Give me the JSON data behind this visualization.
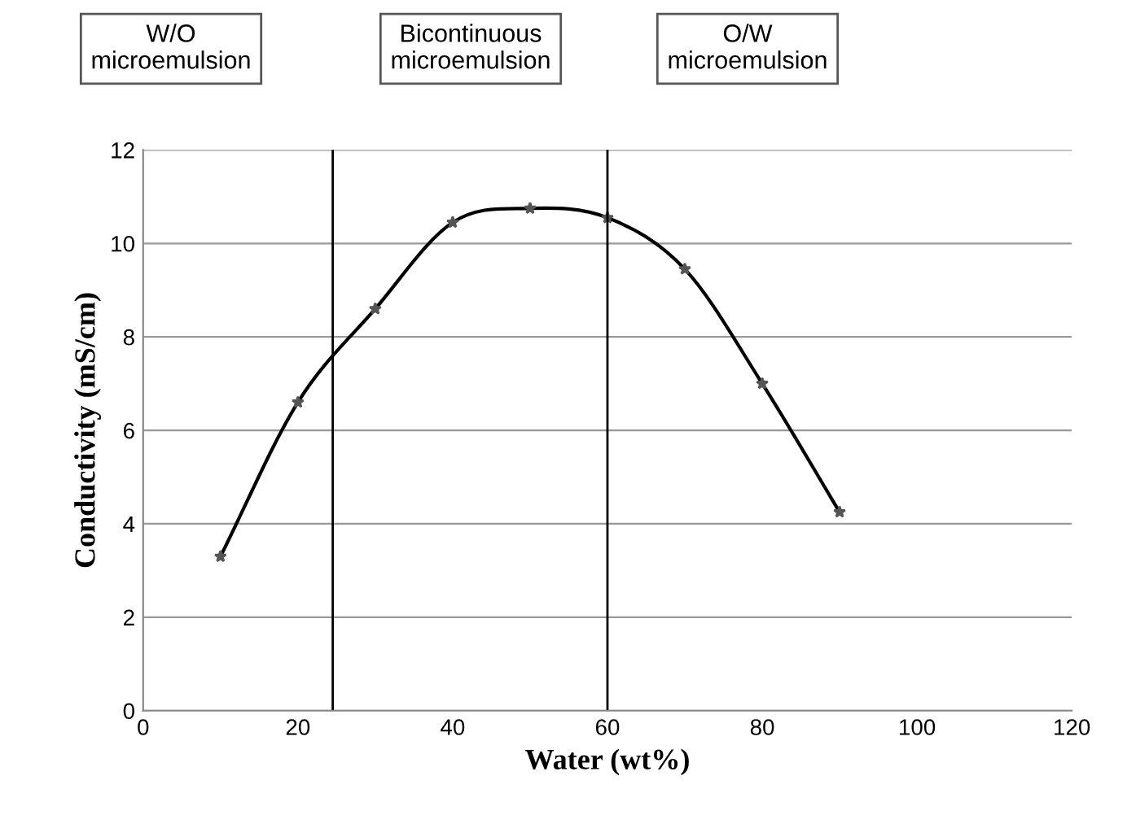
{
  "chart_data": {
    "type": "line",
    "xlabel": "Water (wt%)",
    "ylabel": "Conductivity (mS/cm)",
    "x": [
      10,
      20,
      30,
      40,
      50,
      60,
      70,
      80,
      90
    ],
    "series": [
      {
        "color": "#000000",
        "values": [
          3.3,
          6.6,
          8.6,
          10.45,
          10.75,
          10.55,
          9.45,
          7.0,
          4.25
        ]
      }
    ],
    "xlim": [
      0,
      120
    ],
    "xticks": [
      0,
      20,
      40,
      60,
      80,
      100,
      120
    ],
    "ylim": [
      0,
      12
    ],
    "yticks": [
      0,
      2,
      4,
      6,
      8,
      10,
      12
    ],
    "grid": "y",
    "marker": "star",
    "line_style": "solid",
    "ref_lines": [
      {
        "axis": "x",
        "value": 24.5,
        "color": "#000000"
      },
      {
        "axis": "x",
        "value": 60,
        "color": "#000000"
      }
    ],
    "annotations": [
      "W/O\nmicroemulsion",
      "Bicontinuous\nmicroemulsion",
      "O/W\nmicroemulsion"
    ]
  }
}
